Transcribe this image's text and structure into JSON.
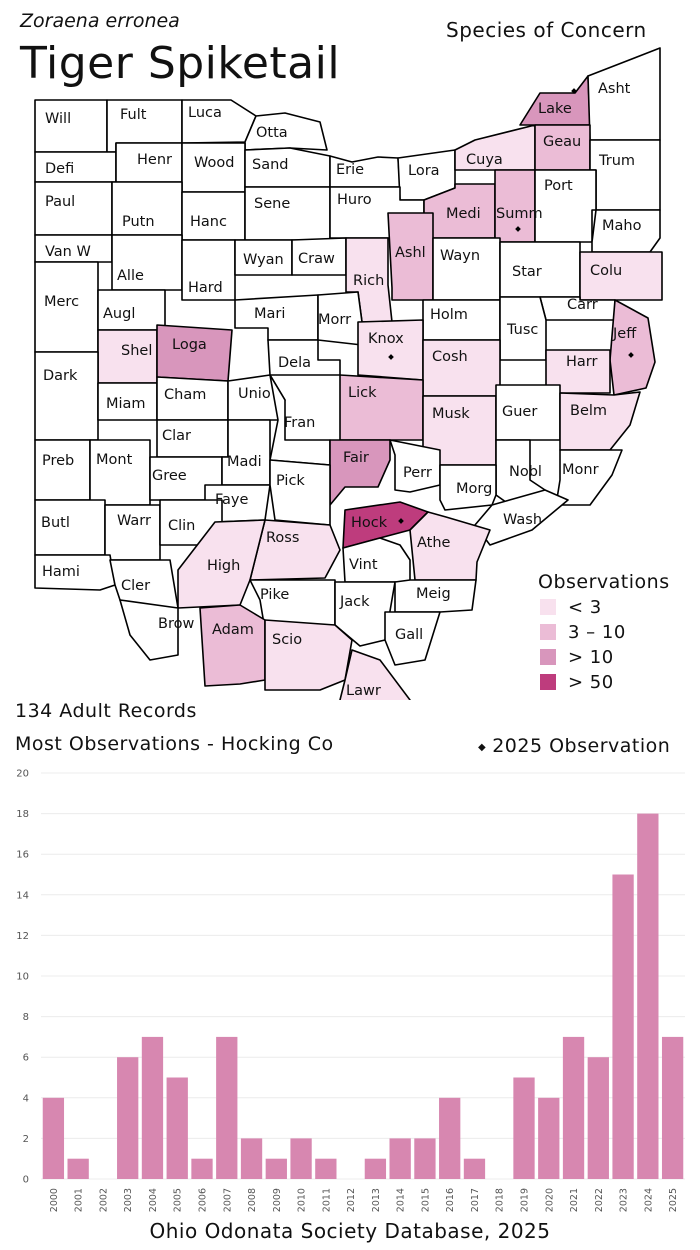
{
  "header": {
    "scientific_name": "Zoraena erronea",
    "common_name": "Tiger Spiketail",
    "status": "Species of Concern"
  },
  "colors": {
    "none": "#ffffff",
    "lt3": "#f8e1ee",
    "r3_10": "#ebbcd6",
    "gt10": "#d896bc",
    "gt50": "#be3c7d",
    "bar": "#d787b0"
  },
  "legend": {
    "title": "Observations",
    "items": [
      {
        "label": "< 3",
        "color": "#f8e1ee"
      },
      {
        "label": "3 – 10",
        "color": "#ebbcd6"
      },
      {
        "label": "> 10",
        "color": "#d896bc"
      },
      {
        "label": "> 50",
        "color": "#be3c7d"
      }
    ],
    "dot_label": "2025  Observation"
  },
  "summary": {
    "records": "134 Adult Records",
    "most": "Most Observations - Hocking Co"
  },
  "counties": [
    {
      "label": "Will",
      "cat": "none",
      "dot": false
    },
    {
      "label": "Fult",
      "cat": "none",
      "dot": false
    },
    {
      "label": "Luca",
      "cat": "none",
      "dot": false
    },
    {
      "label": "Otta",
      "cat": "none",
      "dot": false
    },
    {
      "label": "Defi",
      "cat": "none",
      "dot": false
    },
    {
      "label": "Henr",
      "cat": "none",
      "dot": false
    },
    {
      "label": "Wood",
      "cat": "none",
      "dot": false
    },
    {
      "label": "Sand",
      "cat": "none",
      "dot": false
    },
    {
      "label": "Erie",
      "cat": "none",
      "dot": false
    },
    {
      "label": "Lora",
      "cat": "none",
      "dot": false
    },
    {
      "label": "Cuya",
      "cat": "lt3",
      "dot": false
    },
    {
      "label": "Lake",
      "cat": "gt10",
      "dot": true
    },
    {
      "label": "Asht",
      "cat": "none",
      "dot": false
    },
    {
      "label": "Geau",
      "cat": "r3_10",
      "dot": false
    },
    {
      "label": "Trum",
      "cat": "none",
      "dot": false
    },
    {
      "label": "Paul",
      "cat": "none",
      "dot": false
    },
    {
      "label": "Putn",
      "cat": "none",
      "dot": false
    },
    {
      "label": "Hanc",
      "cat": "none",
      "dot": false
    },
    {
      "label": "Sene",
      "cat": "none",
      "dot": false
    },
    {
      "label": "Huro",
      "cat": "none",
      "dot": false
    },
    {
      "label": "Medi",
      "cat": "r3_10",
      "dot": false
    },
    {
      "label": "Summ",
      "cat": "r3_10",
      "dot": true
    },
    {
      "label": "Port",
      "cat": "none",
      "dot": false
    },
    {
      "label": "Maho",
      "cat": "none",
      "dot": false
    },
    {
      "label": "Van W",
      "cat": "none",
      "dot": false
    },
    {
      "label": "Alle",
      "cat": "none",
      "dot": false
    },
    {
      "label": "Hard",
      "cat": "none",
      "dot": false
    },
    {
      "label": "Wyan",
      "cat": "none",
      "dot": false
    },
    {
      "label": "Craw",
      "cat": "none",
      "dot": false
    },
    {
      "label": "Rich",
      "cat": "lt3",
      "dot": false
    },
    {
      "label": "Ashl",
      "cat": "r3_10",
      "dot": false
    },
    {
      "label": "Wayn",
      "cat": "none",
      "dot": false
    },
    {
      "label": "Star",
      "cat": "none",
      "dot": false
    },
    {
      "label": "Colu",
      "cat": "lt3",
      "dot": false
    },
    {
      "label": "Merc",
      "cat": "none",
      "dot": false
    },
    {
      "label": "Augl",
      "cat": "none",
      "dot": false
    },
    {
      "label": "Mari",
      "cat": "none",
      "dot": false
    },
    {
      "label": "Morr",
      "cat": "none",
      "dot": false
    },
    {
      "label": "Holm",
      "cat": "none",
      "dot": false
    },
    {
      "label": "Carr",
      "cat": "none",
      "dot": false
    },
    {
      "label": "Tusc",
      "cat": "none",
      "dot": false
    },
    {
      "label": "Jeff",
      "cat": "r3_10",
      "dot": true
    },
    {
      "label": "Shel",
      "cat": "lt3",
      "dot": false
    },
    {
      "label": "Loga",
      "cat": "gt10",
      "dot": false
    },
    {
      "label": "Knox",
      "cat": "lt3",
      "dot": true
    },
    {
      "label": "Dela",
      "cat": "none",
      "dot": false
    },
    {
      "label": "Cosh",
      "cat": "lt3",
      "dot": false
    },
    {
      "label": "Harr",
      "cat": "lt3",
      "dot": false
    },
    {
      "label": "Dark",
      "cat": "none",
      "dot": false
    },
    {
      "label": "Miam",
      "cat": "none",
      "dot": false
    },
    {
      "label": "Cham",
      "cat": "none",
      "dot": false
    },
    {
      "label": "Unio",
      "cat": "none",
      "dot": false
    },
    {
      "label": "Lick",
      "cat": "r3_10",
      "dot": false
    },
    {
      "label": "Musk",
      "cat": "lt3",
      "dot": false
    },
    {
      "label": "Guer",
      "cat": "none",
      "dot": false
    },
    {
      "label": "Belm",
      "cat": "lt3",
      "dot": false
    },
    {
      "label": "Clar",
      "cat": "none",
      "dot": false
    },
    {
      "label": "Fran",
      "cat": "none",
      "dot": false
    },
    {
      "label": "Preb",
      "cat": "none",
      "dot": false
    },
    {
      "label": "Mont",
      "cat": "none",
      "dot": false
    },
    {
      "label": "Gree",
      "cat": "none",
      "dot": false
    },
    {
      "label": "Madi",
      "cat": "none",
      "dot": false
    },
    {
      "label": "Fair",
      "cat": "gt10",
      "dot": false
    },
    {
      "label": "Perr",
      "cat": "none",
      "dot": false
    },
    {
      "label": "Nobl",
      "cat": "none",
      "dot": false
    },
    {
      "label": "Monr",
      "cat": "none",
      "dot": false
    },
    {
      "label": "Faye",
      "cat": "none",
      "dot": false
    },
    {
      "label": "Pick",
      "cat": "none",
      "dot": false
    },
    {
      "label": "Morg",
      "cat": "none",
      "dot": false
    },
    {
      "label": "Butl",
      "cat": "none",
      "dot": false
    },
    {
      "label": "Warr",
      "cat": "none",
      "dot": false
    },
    {
      "label": "Clin",
      "cat": "none",
      "dot": false
    },
    {
      "label": "Hock",
      "cat": "gt50",
      "dot": true
    },
    {
      "label": "Wash",
      "cat": "none",
      "dot": false
    },
    {
      "label": "Ross",
      "cat": "lt3",
      "dot": false
    },
    {
      "label": "Athe",
      "cat": "lt3",
      "dot": false
    },
    {
      "label": "Hami",
      "cat": "none",
      "dot": false
    },
    {
      "label": "High",
      "cat": "lt3",
      "dot": false
    },
    {
      "label": "Vint",
      "cat": "none",
      "dot": false
    },
    {
      "label": "Cler",
      "cat": "none",
      "dot": false
    },
    {
      "label": "Pike",
      "cat": "none",
      "dot": false
    },
    {
      "label": "Jack",
      "cat": "none",
      "dot": false
    },
    {
      "label": "Meig",
      "cat": "none",
      "dot": false
    },
    {
      "label": "Brow",
      "cat": "none",
      "dot": false
    },
    {
      "label": "Adam",
      "cat": "r3_10",
      "dot": false
    },
    {
      "label": "Scio",
      "cat": "lt3",
      "dot": false
    },
    {
      "label": "Gall",
      "cat": "none",
      "dot": false
    },
    {
      "label": "Lawr",
      "cat": "lt3",
      "dot": false
    }
  ],
  "chart_data": {
    "type": "bar",
    "categories": [
      "2000",
      "2001",
      "2002",
      "2003",
      "2004",
      "2005",
      "2006",
      "2007",
      "2008",
      "2009",
      "2010",
      "2011",
      "2012",
      "2013",
      "2014",
      "2015",
      "2016",
      "2017",
      "2018",
      "2019",
      "2020",
      "2021",
      "2022",
      "2023",
      "2024",
      "2025"
    ],
    "values": [
      4,
      1,
      0,
      6,
      7,
      5,
      1,
      7,
      2,
      1,
      2,
      1,
      0,
      1,
      2,
      2,
      4,
      1,
      0,
      5,
      4,
      7,
      6,
      15,
      18,
      7
    ],
    "yticks": [
      "0",
      "2",
      "4",
      "6",
      "8",
      "10",
      "12",
      "14",
      "16",
      "18",
      "20"
    ],
    "ylim": [
      0,
      20
    ],
    "grid": true,
    "title": "",
    "xlabel": "",
    "ylabel": ""
  },
  "footer": {
    "source": "Ohio Odonata Society Database, 2025"
  }
}
